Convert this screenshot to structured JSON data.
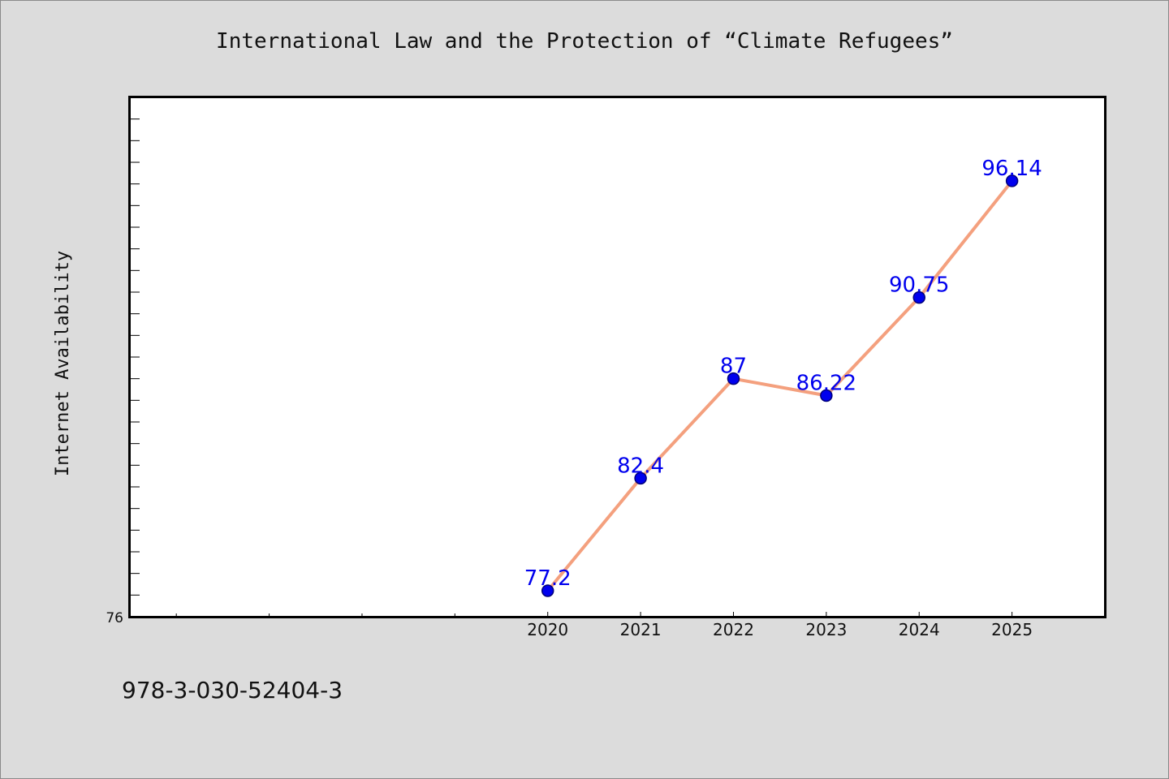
{
  "chart_data": {
    "type": "line",
    "title": "International Law and the Protection of “Climate Refugees”",
    "ylabel": "Internet Availability",
    "xlabel": "",
    "categories": [
      "2020",
      "2021",
      "2022",
      "2023",
      "2024",
      "2025"
    ],
    "series": [
      {
        "values": [
          77.2,
          82.4,
          87,
          86.22,
          90.75,
          96.14
        ],
        "labels": [
          "77.2",
          "82.4",
          "87",
          "86.22",
          "90.75",
          "96.14"
        ]
      }
    ],
    "x_range": [
      2015.5,
      2026
    ],
    "ylim": [
      76,
      100
    ],
    "y_tick_label": "76",
    "grid": false,
    "legend": "none",
    "colors": {
      "line": "#f4a07e",
      "marker": "#0000ee",
      "label": "#0000ee",
      "background": "#dcdcdc",
      "plot": "#ffffff"
    }
  },
  "footer": {
    "isbn": "978-3-030-52404-3"
  }
}
